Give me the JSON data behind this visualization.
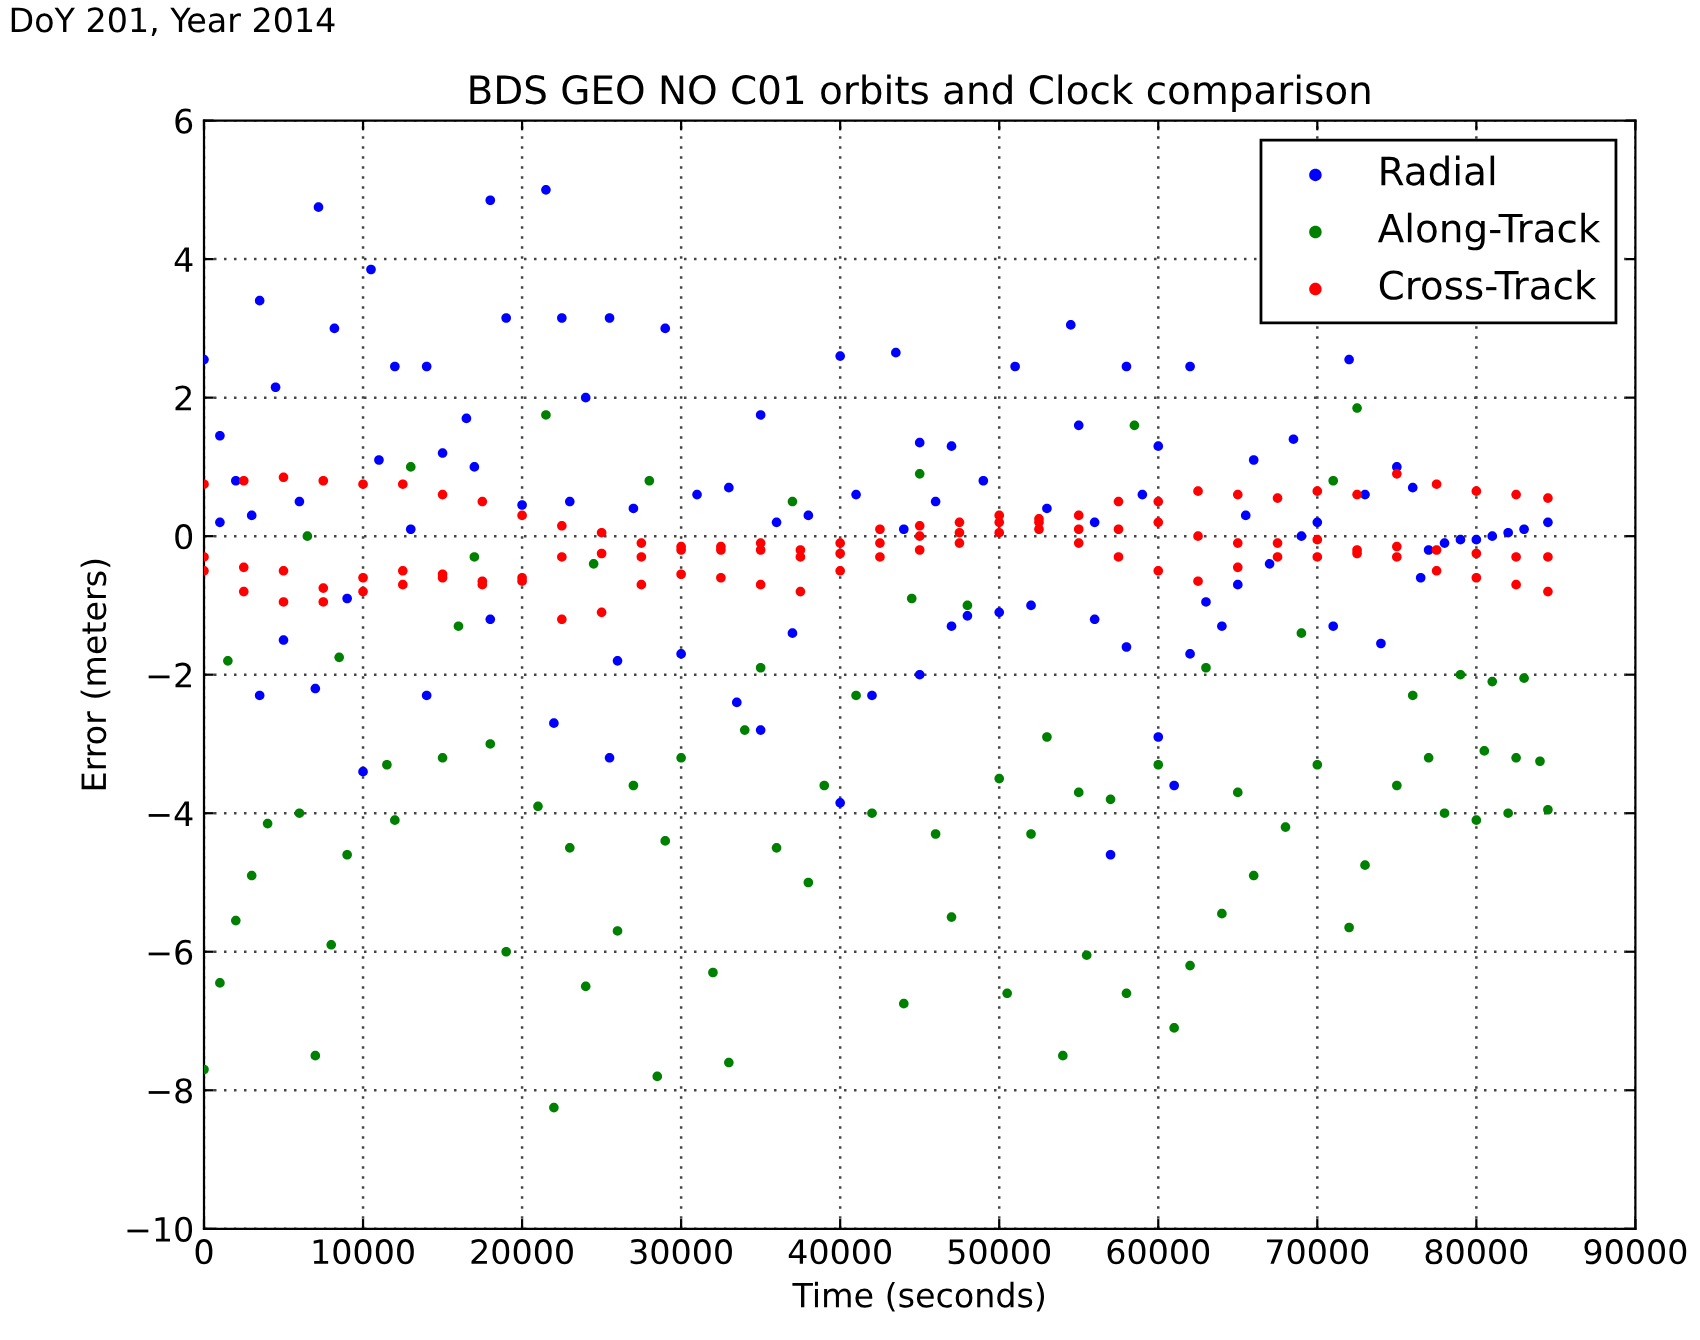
{
  "chart_data": {
    "type": "scatter",
    "title": "BDS GEO NO C01 orbits and Clock comparison",
    "xlabel": "Time (seconds)",
    "ylabel": "Error (meters)",
    "annotations": [
      "DoY 201, Year 2014"
    ],
    "xlim": [
      0,
      90000
    ],
    "ylim": [
      -10,
      6
    ],
    "xticks": [
      0,
      10000,
      20000,
      30000,
      40000,
      50000,
      60000,
      70000,
      80000,
      90000
    ],
    "yticks": [
      -10,
      -8,
      -6,
      -4,
      -2,
      0,
      2,
      4,
      6
    ],
    "grid": true,
    "legend": "top right",
    "marker": "circle",
    "series": [
      {
        "name": "Radial",
        "color": "#0000ff",
        "x": [
          0,
          1000,
          2000,
          3500,
          4500,
          7200,
          8200,
          10500,
          12000,
          14000,
          16500,
          18000,
          19000,
          21500,
          22500,
          24000,
          25500,
          29000,
          35000,
          40000,
          43500,
          45000,
          47000,
          51000,
          54500,
          55000,
          58000,
          60000,
          62000,
          66000,
          68500,
          72000,
          73000,
          75000,
          76000,
          70000,
          78000,
          79000,
          80000,
          81000,
          82000,
          83000,
          84500,
          7000,
          3500,
          25500,
          33500,
          37000,
          42000,
          50000,
          52000,
          56000,
          58000,
          60000,
          63000,
          65000,
          67000,
          71000,
          74000,
          76500,
          22000,
          14000,
          18000,
          47000,
          48000,
          30000,
          26000,
          5000,
          10000,
          40000,
          62000,
          64000,
          45000,
          57000,
          61000,
          35000,
          1000,
          3000,
          6000,
          9000,
          11000,
          13000,
          15000,
          17000,
          20000,
          23000,
          27000,
          31000,
          33000,
          36000,
          38000,
          41000,
          44000,
          46000,
          49000,
          53000,
          56000,
          59000,
          65500,
          69000,
          77000
        ],
        "values": [
          2.55,
          1.45,
          0.8,
          3.4,
          2.15,
          4.75,
          3.0,
          3.85,
          2.45,
          2.45,
          1.7,
          4.85,
          3.15,
          5.0,
          3.15,
          2.0,
          3.15,
          3.0,
          1.75,
          2.6,
          2.65,
          1.35,
          1.3,
          2.45,
          3.05,
          1.6,
          2.45,
          1.3,
          2.45,
          1.1,
          1.4,
          2.55,
          0.6,
          1.0,
          0.7,
          0.2,
          -0.1,
          -0.05,
          -0.05,
          0.0,
          0.05,
          0.1,
          0.2,
          -2.2,
          -2.3,
          -3.2,
          -2.4,
          -1.4,
          -2.3,
          -1.1,
          -1.0,
          -1.2,
          -1.6,
          -2.9,
          -0.95,
          -0.7,
          -0.4,
          -1.3,
          -1.55,
          -0.6,
          -2.7,
          -2.3,
          -1.2,
          -1.3,
          -1.15,
          -1.7,
          -1.8,
          -1.5,
          -3.4,
          -3.85,
          -1.7,
          -1.3,
          -2.0,
          -4.6,
          -3.6,
          -2.8,
          0.2,
          0.3,
          0.5,
          -0.9,
          1.1,
          0.1,
          1.2,
          1.0,
          0.45,
          0.5,
          0.4,
          0.6,
          0.7,
          0.2,
          0.3,
          0.6,
          0.1,
          0.5,
          0.8,
          0.4,
          0.2,
          0.6,
          0.3,
          0.0,
          -0.2
        ]
      },
      {
        "name": "Along-Track",
        "color": "#008000",
        "x": [
          22000,
          28500,
          0,
          7000,
          33000,
          54000,
          61000,
          19000,
          1000,
          2000,
          8000,
          24000,
          32000,
          44000,
          58000,
          62000,
          72000,
          64000,
          12000,
          15000,
          18000,
          27000,
          30000,
          36000,
          39000,
          42000,
          46000,
          50000,
          52000,
          55000,
          57000,
          60000,
          65000,
          68000,
          70000,
          75000,
          78000,
          80000,
          82000,
          84500,
          76000,
          79000,
          81000,
          83000,
          77000,
          80500,
          82500,
          84000,
          73000,
          66000,
          50500,
          55500,
          47000,
          38000,
          4000,
          6000,
          3000,
          9000,
          11500,
          21000,
          23000,
          26000,
          29000,
          34000,
          41000,
          48000,
          53000,
          63000,
          69000,
          71000,
          72500,
          58500,
          45000,
          21500,
          13000,
          6500,
          28000,
          37000,
          44500,
          35000,
          16000,
          8500,
          1500,
          17000,
          24500
        ],
        "values": [
          -8.25,
          -7.8,
          -7.7,
          -7.5,
          -7.6,
          -7.5,
          -7.1,
          -6.0,
          -6.45,
          -5.55,
          -5.9,
          -6.5,
          -6.3,
          -6.75,
          -6.6,
          -6.2,
          -5.65,
          -5.45,
          -4.1,
          -3.2,
          -3.0,
          -3.6,
          -3.2,
          -4.5,
          -3.6,
          -4.0,
          -4.3,
          -3.5,
          -4.3,
          -3.7,
          -3.8,
          -3.3,
          -3.7,
          -4.2,
          -3.3,
          -3.6,
          -4.0,
          -4.1,
          -4.0,
          -3.95,
          -2.3,
          -2.0,
          -2.1,
          -2.05,
          -3.2,
          -3.1,
          -3.2,
          -3.25,
          -4.75,
          -4.9,
          -6.6,
          -6.05,
          -5.5,
          -5.0,
          -4.15,
          -4.0,
          -4.9,
          -4.6,
          -3.3,
          -3.9,
          -4.5,
          -5.7,
          -4.4,
          -2.8,
          -2.3,
          -1.0,
          -2.9,
          -1.9,
          -1.4,
          0.8,
          1.85,
          1.6,
          0.9,
          1.75,
          1.0,
          0.0,
          0.8,
          0.5,
          -0.9,
          -1.9,
          -1.3,
          -1.75,
          -1.8,
          -0.3,
          -0.4
        ]
      },
      {
        "name": "Cross-Track",
        "color": "#ff0000",
        "x": [
          0,
          2500,
          5000,
          7500,
          10000,
          12500,
          15000,
          17500,
          20000,
          22500,
          25000,
          27500,
          30000,
          32500,
          35000,
          37500,
          40000,
          42500,
          45000,
          47500,
          50000,
          52500,
          55000,
          57500,
          60000,
          62500,
          65000,
          67500,
          70000,
          72500,
          75000,
          77500,
          80000,
          82500,
          84500,
          0,
          2500,
          5000,
          7500,
          10000,
          12500,
          15000,
          17500,
          20000,
          22500,
          25000,
          27500,
          30000,
          32500,
          35000,
          37500,
          40000,
          42500,
          45000,
          47500,
          50000,
          52500,
          55000,
          57500,
          60000,
          62500,
          65000,
          67500,
          70000,
          72500,
          75000,
          77500,
          80000,
          82500,
          84500,
          0,
          2500,
          5000,
          7500,
          10000,
          12500,
          15000,
          17500,
          20000,
          22500,
          25000,
          27500,
          30000,
          32500,
          35000,
          37500,
          40000,
          42500,
          45000,
          47500,
          50000,
          52500,
          55000,
          57500,
          60000,
          62500,
          65000,
          67500,
          70000,
          72500,
          75000,
          77500,
          80000,
          82500,
          84500
        ],
        "values": [
          0.75,
          0.8,
          0.85,
          0.8,
          0.75,
          0.75,
          0.6,
          0.5,
          0.3,
          0.15,
          0.05,
          -0.1,
          -0.15,
          -0.2,
          -0.2,
          -0.3,
          -0.25,
          -0.1,
          0.0,
          0.2,
          0.2,
          0.25,
          0.3,
          0.5,
          0.5,
          0.65,
          0.6,
          0.55,
          0.65,
          0.6,
          0.9,
          0.75,
          0.65,
          0.6,
          0.55,
          -0.3,
          -0.45,
          -0.5,
          -0.75,
          -0.8,
          -0.7,
          -0.6,
          -0.7,
          -0.65,
          -0.3,
          -0.25,
          -0.3,
          -0.2,
          -0.15,
          -0.1,
          -0.2,
          -0.1,
          0.1,
          0.15,
          0.05,
          0.3,
          0.2,
          0.1,
          0.1,
          0.2,
          0.0,
          -0.1,
          -0.1,
          -0.05,
          -0.2,
          -0.15,
          -0.2,
          -0.25,
          -0.3,
          -0.3,
          -0.5,
          -0.8,
          -0.95,
          -0.95,
          -0.6,
          -0.5,
          -0.55,
          -0.65,
          -0.6,
          -1.2,
          -1.1,
          -0.7,
          -0.55,
          -0.6,
          -0.7,
          -0.8,
          -0.5,
          -0.3,
          -0.2,
          -0.1,
          0.05,
          0.1,
          -0.1,
          -0.3,
          -0.5,
          -0.65,
          -0.45,
          -0.3,
          -0.3,
          -0.25,
          -0.3,
          -0.5,
          -0.6,
          -0.7,
          -0.8
        ]
      }
    ]
  }
}
